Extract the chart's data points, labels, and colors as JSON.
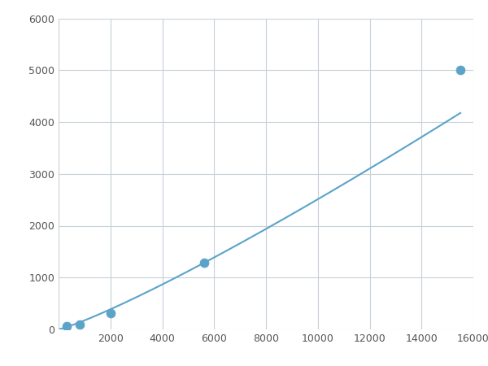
{
  "x_points": [
    300,
    800,
    2000,
    5600,
    15500
  ],
  "y_points": [
    60,
    100,
    310,
    1280,
    5000
  ],
  "line_color": "#5ba3c9",
  "marker_color": "#5ba3c9",
  "marker_size": 5,
  "line_width": 1.5,
  "xlim": [
    0,
    16000
  ],
  "ylim": [
    0,
    6000
  ],
  "xticks": [
    0,
    2000,
    4000,
    6000,
    8000,
    10000,
    12000,
    14000,
    16000
  ],
  "yticks": [
    0,
    1000,
    2000,
    3000,
    4000,
    5000,
    6000
  ],
  "grid_color": "#c8d0d8",
  "bg_color": "#ffffff",
  "fig_bg_color": "#ffffff",
  "tick_fontsize": 9,
  "tick_color": "#555555"
}
